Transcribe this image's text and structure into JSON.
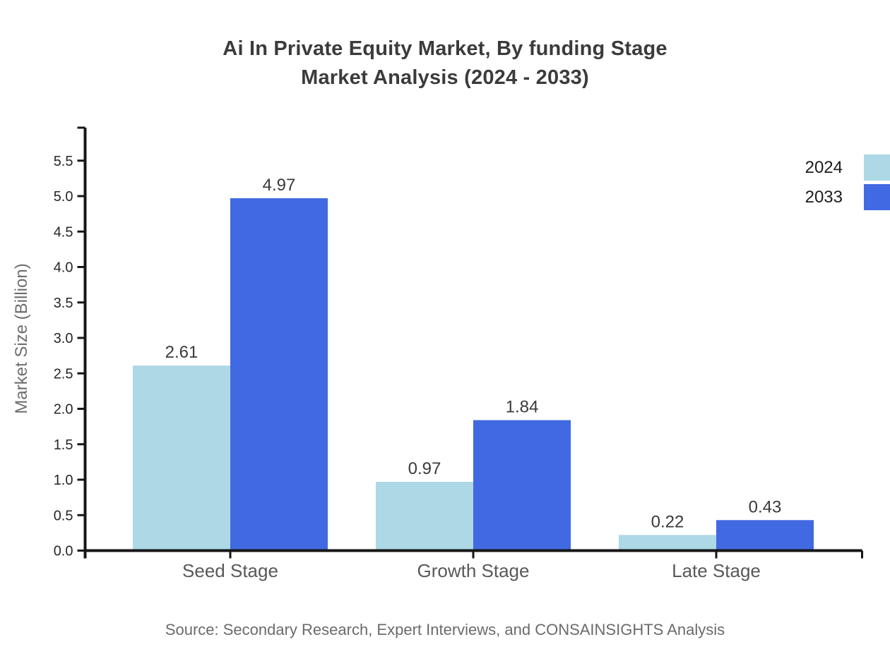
{
  "title": {
    "line1": "Ai In Private Equity Market, By funding Stage",
    "line2": "Market Analysis (2024 - 2033)"
  },
  "source": "Source: Secondary Research, Expert Interviews, and CONSAINSIGHTS Analysis",
  "legend": {
    "entries": [
      {
        "label": "2024",
        "color": "#add8e6"
      },
      {
        "label": "2033",
        "color": "#4169e1"
      }
    ]
  },
  "chart_data": {
    "type": "bar",
    "title": "Ai In Private Equity Market, By funding Stage Market Analysis (2024 - 2033)",
    "categories": [
      "Seed Stage",
      "Growth Stage",
      "Late Stage"
    ],
    "series": [
      {
        "name": "2024",
        "color": "#add8e6",
        "values": [
          2.61,
          0.97,
          0.22
        ]
      },
      {
        "name": "2033",
        "color": "#4169e1",
        "values": [
          4.97,
          1.84,
          0.43
        ]
      }
    ],
    "xlabel": "",
    "ylabel": "Market Size (Billion)",
    "ylim": [
      0,
      5.5
    ],
    "ytick_step": 0.5,
    "ytick_labels": [
      "0.0",
      "0.5",
      "1.0",
      "1.5",
      "2.0",
      "2.5",
      "3.0",
      "3.5",
      "4.0",
      "4.5",
      "5.0",
      "5.5"
    ],
    "grid": false,
    "legend_position": "top-right-edge",
    "value_labels": "above bars, 2 decimals",
    "colors": {
      "background": "#ffffff",
      "axis": "#161616",
      "title_text": "#3b3b3b",
      "ytick_text": "#262626",
      "category_text": "#595959",
      "value_text": "#3a3a3a",
      "ylabel_text": "#6e6e6e",
      "legend_text": "#1c1c1c",
      "source_text": "#6b6b6b"
    }
  }
}
